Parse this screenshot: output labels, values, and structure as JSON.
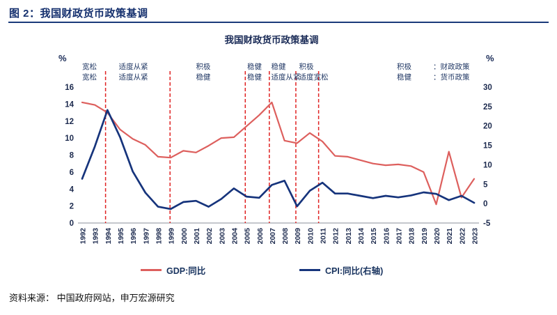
{
  "header": {
    "title": "图 2：我国财政货币政策基调"
  },
  "chart": {
    "title": "我国财政货币政策基调",
    "left_unit": "%",
    "right_unit": "%"
  },
  "policy_annotations": {
    "periods": [
      {
        "fiscal": "宽松",
        "monetary": "宽松",
        "year": 1992.0
      },
      {
        "fiscal": "适度从紧",
        "monetary": "适度从紧",
        "year": 1994.9
      },
      {
        "fiscal": "积极",
        "monetary": "稳健",
        "year": 2001.0
      },
      {
        "fiscal": "稳健",
        "monetary": "稳健",
        "year": 2005.05
      },
      {
        "fiscal": "稳健",
        "monetary": "适度从紧",
        "year": 2006.95
      },
      {
        "fiscal": "积极",
        "monetary": "适度宽松",
        "year": 2009.15
      }
    ],
    "key": [
      {
        "term": "积极",
        "desc": "：财政政策"
      },
      {
        "term": "稳健",
        "desc": "：货币政策"
      }
    ]
  },
  "legend": {
    "gdp": {
      "label": "GDP:同比",
      "color": "#dd5f5d"
    },
    "cpi": {
      "label": "CPI:同比(右轴)",
      "color": "#16347c"
    }
  },
  "source": "资料来源： 中国政府网站，申万宏源研究",
  "chart_data": {
    "type": "line",
    "title": "我国财政货币政策基调",
    "x": [
      1992,
      1993,
      1994,
      1995,
      1996,
      1997,
      1998,
      1999,
      2000,
      2001,
      2002,
      2003,
      2004,
      2005,
      2006,
      2007,
      2008,
      2009,
      2010,
      2011,
      2012,
      2013,
      2014,
      2015,
      2016,
      2017,
      2018,
      2019,
      2020,
      2021,
      2022,
      2023
    ],
    "series": [
      {
        "name": "GDP:同比",
        "axis": "left",
        "color": "#dd5f5d",
        "values": [
          14.2,
          13.9,
          13.0,
          11.0,
          9.9,
          9.2,
          7.8,
          7.7,
          8.5,
          8.3,
          9.1,
          10.0,
          10.1,
          11.4,
          12.7,
          14.2,
          9.7,
          9.4,
          10.6,
          9.6,
          7.9,
          7.8,
          7.4,
          7.0,
          6.8,
          6.9,
          6.7,
          6.0,
          2.2,
          8.4,
          3.0,
          5.2
        ]
      },
      {
        "name": "CPI:同比(右轴)",
        "axis": "right",
        "color": "#16347c",
        "values": [
          6.4,
          14.7,
          24.1,
          17.1,
          8.3,
          2.8,
          -0.8,
          -1.4,
          0.4,
          0.7,
          -0.8,
          1.2,
          3.9,
          1.8,
          1.5,
          4.8,
          5.9,
          -0.7,
          3.3,
          5.4,
          2.6,
          2.6,
          2.0,
          1.4,
          2.0,
          1.6,
          2.1,
          2.9,
          2.5,
          0.9,
          2.0,
          0.2
        ]
      }
    ],
    "left_ylim": [
      0,
      16
    ],
    "left_ticks": [
      0,
      2,
      4,
      6,
      8,
      10,
      12,
      14,
      16
    ],
    "right_ylim": [
      -5,
      30
    ],
    "right_ticks": [
      -5,
      0,
      5,
      10,
      15,
      20,
      25,
      30
    ],
    "vlines_x": [
      1993.85,
      1998.95,
      2004.9,
      2006.8,
      2008.9,
      2010.7
    ],
    "vline_color": "#e02222",
    "grid": false,
    "legend_position": "bottom"
  }
}
